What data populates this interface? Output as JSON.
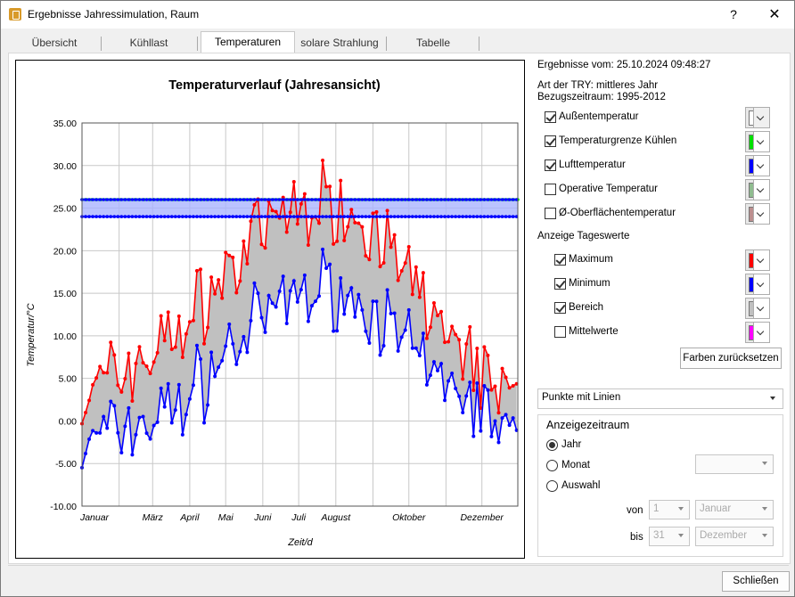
{
  "window": {
    "title": "Ergebnisse Jahressimulation, Raum",
    "help": "?",
    "close": "✕"
  },
  "tabs": [
    {
      "label": "Übersicht"
    },
    {
      "label": "Kühllast"
    },
    {
      "label": "Temperaturen"
    },
    {
      "label": "solare Strahlung"
    },
    {
      "label": "Tabelle"
    }
  ],
  "info": {
    "results_date": "Ergebnisse vom: 25.10.2024 09:48:27",
    "try_type": "Art der TRY: mittleres Jahr",
    "reference_period": "Bezugszeitraum: 1995-2012"
  },
  "series_options": [
    {
      "label": "Außentemperatur",
      "checked": true,
      "color": "#ffffff",
      "disabled_arrow": true
    },
    {
      "label": "Temperaturgrenze Kühlen",
      "checked": true,
      "color": "#00e000"
    },
    {
      "label": "Lufttemperatur",
      "checked": true,
      "color": "#0000ff"
    },
    {
      "label": "Operative Temperatur",
      "checked": false,
      "color": "#8fbc8f"
    },
    {
      "label": "Ø-Oberflächentemperatur",
      "checked": false,
      "color": "#bc8f8f"
    }
  ],
  "daily_heading": "Anzeige Tageswerte",
  "daily_options": [
    {
      "label": "Maximum",
      "checked": true,
      "color": "#ff0000"
    },
    {
      "label": "Minimum",
      "checked": true,
      "color": "#0000ff"
    },
    {
      "label": "Bereich",
      "checked": true,
      "color": "#c0c0c0"
    },
    {
      "label": "Mittelwerte",
      "checked": false,
      "color": "#ff00ff"
    }
  ],
  "reset_colors": "Farben zurücksetzen",
  "display_style": "Punkte mit Linien",
  "period": {
    "heading": "Anzeigezeitraum",
    "options": [
      {
        "label": "Jahr",
        "selected": true
      },
      {
        "label": "Monat",
        "selected": false
      },
      {
        "label": "Auswahl",
        "selected": false
      }
    ],
    "month_value": "",
    "from_label": "von",
    "from_day": "1",
    "from_month": "Januar",
    "to_label": "bis",
    "to_day": "31",
    "to_month": "Dezember"
  },
  "close_button": "Schließen",
  "chart_data": {
    "type": "line",
    "title": "Temperaturverlauf (Jahresansicht)",
    "xlabel": "Zeit/d",
    "ylabel": "Temperatur/°C",
    "ylim": [
      -10,
      35
    ],
    "yticks": [
      "35.00",
      "30.00",
      "25.00",
      "20.00",
      "15.00",
      "10.00",
      "5.00",
      "0.00",
      "-5.00",
      "-10.00"
    ],
    "grid": true,
    "xticks": [
      {
        "label": "Januar",
        "day": 1
      },
      {
        "label": "März",
        "day": 60
      },
      {
        "label": "April",
        "day": 91
      },
      {
        "label": "Mai",
        "day": 121
      },
      {
        "label": "Juni",
        "day": 152
      },
      {
        "label": "Juli",
        "day": 182
      },
      {
        "label": "August",
        "day": 213
      },
      {
        "label": "Oktober",
        "day": 274
      },
      {
        "label": "Dezember",
        "day": 335
      }
    ],
    "xlim": [
      1,
      365
    ],
    "outdoor": {
      "name": "Außentemperatur",
      "month_days": [
        1,
        32,
        60,
        91,
        121,
        152,
        182,
        213,
        244,
        274,
        305,
        335,
        365
      ],
      "max": [
        2,
        6,
        8,
        12,
        17,
        22,
        25,
        26,
        23,
        16,
        10,
        5,
        3
      ],
      "min": [
        -3,
        -1,
        0,
        3,
        8,
        12,
        15,
        16,
        13,
        8,
        4,
        1,
        -2
      ]
    },
    "cooling_limit": {
      "name": "Temperaturgrenze Kühlen",
      "value": 26
    },
    "air": {
      "name": "Lufttemperatur",
      "upper": 26,
      "lower": 24
    }
  }
}
